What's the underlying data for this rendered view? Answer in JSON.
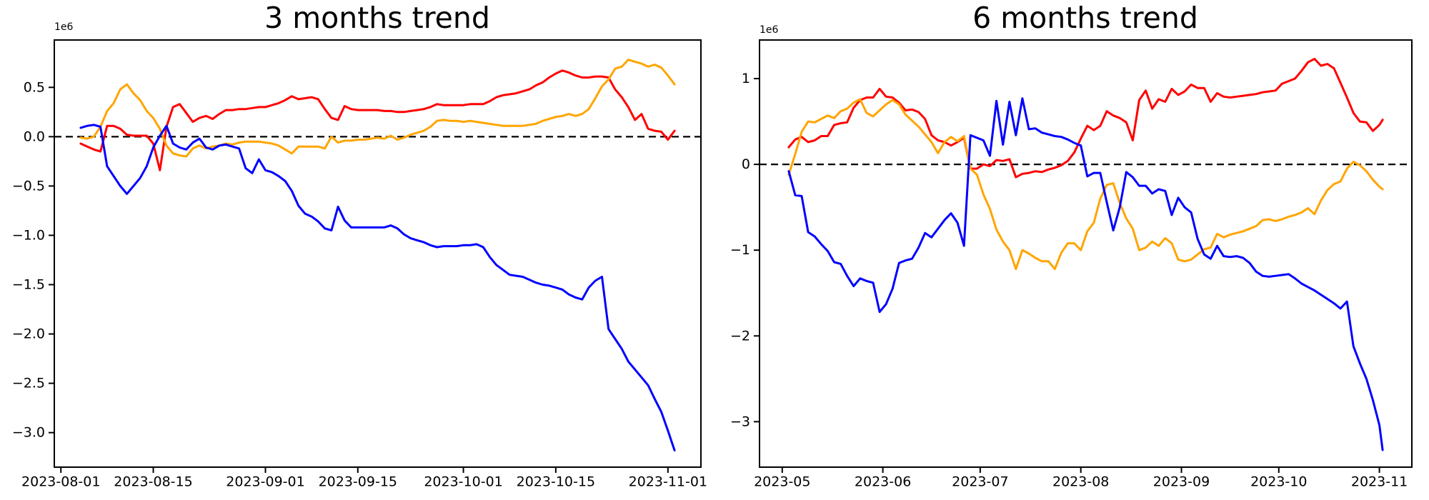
{
  "figure": {
    "background": "#ffffff",
    "text_color": "#000000"
  },
  "chart_data": [
    {
      "id": "three-months-trend",
      "type": "line",
      "title": "3 months trend",
      "y_offset_label": "1e6",
      "grid": false,
      "legend": "none",
      "zero_line": true,
      "xlim": [
        "2023-07-31",
        "2023-11-06"
      ],
      "ylim": [
        -3.35,
        0.98
      ],
      "yticks": [
        {
          "v": 0.5,
          "label": "0.5"
        },
        {
          "v": 0.0,
          "label": "0.0"
        },
        {
          "v": -0.5,
          "label": "−0.5"
        },
        {
          "v": -1.0,
          "label": "−1.0"
        },
        {
          "v": -1.5,
          "label": "−1.5"
        },
        {
          "v": -2.0,
          "label": "−2.0"
        },
        {
          "v": -2.5,
          "label": "−2.5"
        },
        {
          "v": -3.0,
          "label": "−3.0"
        }
      ],
      "xticks": [
        {
          "date": "2023-08-01",
          "label": "2023-08-01"
        },
        {
          "date": "2023-08-15",
          "label": "2023-08-15"
        },
        {
          "date": "2023-09-01",
          "label": "2023-09-01"
        },
        {
          "date": "2023-09-15",
          "label": "2023-09-15"
        },
        {
          "date": "2023-10-01",
          "label": "2023-10-01"
        },
        {
          "date": "2023-10-15",
          "label": "2023-10-15"
        },
        {
          "date": "2023-11-01",
          "label": "2023-11-01"
        }
      ],
      "x": [
        "2023-08-04",
        "2023-08-05",
        "2023-08-06",
        "2023-08-07",
        "2023-08-08",
        "2023-08-09",
        "2023-08-10",
        "2023-08-11",
        "2023-08-12",
        "2023-08-13",
        "2023-08-14",
        "2023-08-15",
        "2023-08-16",
        "2023-08-17",
        "2023-08-18",
        "2023-08-19",
        "2023-08-20",
        "2023-08-21",
        "2023-08-22",
        "2023-08-23",
        "2023-08-24",
        "2023-08-25",
        "2023-08-26",
        "2023-08-27",
        "2023-08-28",
        "2023-08-29",
        "2023-08-30",
        "2023-08-31",
        "2023-09-01",
        "2023-09-02",
        "2023-09-03",
        "2023-09-04",
        "2023-09-05",
        "2023-09-06",
        "2023-09-07",
        "2023-09-08",
        "2023-09-09",
        "2023-09-10",
        "2023-09-11",
        "2023-09-12",
        "2023-09-13",
        "2023-09-14",
        "2023-09-15",
        "2023-09-16",
        "2023-09-17",
        "2023-09-18",
        "2023-09-19",
        "2023-09-20",
        "2023-09-21",
        "2023-09-22",
        "2023-09-23",
        "2023-09-24",
        "2023-09-25",
        "2023-09-26",
        "2023-09-27",
        "2023-09-28",
        "2023-09-29",
        "2023-09-30",
        "2023-10-01",
        "2023-10-02",
        "2023-10-03",
        "2023-10-04",
        "2023-10-05",
        "2023-10-06",
        "2023-10-07",
        "2023-10-08",
        "2023-10-09",
        "2023-10-10",
        "2023-10-11",
        "2023-10-12",
        "2023-10-13",
        "2023-10-14",
        "2023-10-15",
        "2023-10-16",
        "2023-10-17",
        "2023-10-18",
        "2023-10-19",
        "2023-10-20",
        "2023-10-21",
        "2023-10-22",
        "2023-10-23",
        "2023-10-24",
        "2023-10-25",
        "2023-10-26",
        "2023-10-27",
        "2023-10-28",
        "2023-10-29",
        "2023-10-30",
        "2023-10-31",
        "2023-11-01",
        "2023-11-02"
      ],
      "series": [
        {
          "name": "red",
          "color": "#ff0000",
          "values": [
            -0.07,
            -0.1,
            -0.13,
            -0.15,
            0.11,
            0.11,
            0.08,
            0.02,
            0.01,
            0.01,
            0.01,
            -0.07,
            -0.34,
            0.1,
            0.3,
            0.33,
            0.24,
            0.15,
            0.19,
            0.21,
            0.18,
            0.23,
            0.27,
            0.27,
            0.28,
            0.28,
            0.29,
            0.3,
            0.3,
            0.32,
            0.34,
            0.37,
            0.41,
            0.38,
            0.39,
            0.4,
            0.38,
            0.28,
            0.19,
            0.17,
            0.31,
            0.28,
            0.27,
            0.27,
            0.27,
            0.27,
            0.26,
            0.26,
            0.25,
            0.25,
            0.26,
            0.27,
            0.28,
            0.3,
            0.33,
            0.32,
            0.32,
            0.32,
            0.32,
            0.33,
            0.33,
            0.33,
            0.36,
            0.4,
            0.42,
            0.43,
            0.44,
            0.46,
            0.48,
            0.52,
            0.55,
            0.6,
            0.64,
            0.67,
            0.65,
            0.62,
            0.6,
            0.6,
            0.61,
            0.61,
            0.6,
            0.48,
            0.4,
            0.3,
            0.17,
            0.23,
            0.08,
            0.06,
            0.05,
            -0.03,
            0.06
          ]
        },
        {
          "name": "orange",
          "color": "#ffa500",
          "values": [
            -0.01,
            -0.02,
            0.0,
            0.1,
            0.26,
            0.34,
            0.48,
            0.53,
            0.44,
            0.37,
            0.26,
            0.19,
            0.08,
            -0.09,
            -0.17,
            -0.19,
            -0.2,
            -0.12,
            -0.09,
            -0.12,
            -0.1,
            -0.09,
            -0.07,
            -0.08,
            -0.06,
            -0.05,
            -0.05,
            -0.05,
            -0.06,
            -0.07,
            -0.09,
            -0.13,
            -0.17,
            -0.1,
            -0.1,
            -0.1,
            -0.1,
            -0.12,
            0.0,
            -0.06,
            -0.04,
            -0.04,
            -0.03,
            -0.03,
            -0.02,
            -0.01,
            -0.02,
            0.01,
            -0.03,
            -0.01,
            0.02,
            0.04,
            0.06,
            0.1,
            0.16,
            0.17,
            0.16,
            0.16,
            0.15,
            0.16,
            0.15,
            0.14,
            0.13,
            0.12,
            0.11,
            0.11,
            0.11,
            0.11,
            0.12,
            0.13,
            0.16,
            0.18,
            0.2,
            0.21,
            0.23,
            0.21,
            0.23,
            0.28,
            0.39,
            0.51,
            0.58,
            0.69,
            0.71,
            0.78,
            0.76,
            0.74,
            0.71,
            0.73,
            0.7,
            0.62,
            0.53
          ]
        },
        {
          "name": "blue",
          "color": "#0000ff",
          "values": [
            0.09,
            0.11,
            0.12,
            0.1,
            -0.3,
            -0.4,
            -0.5,
            -0.58,
            -0.5,
            -0.42,
            -0.3,
            -0.11,
            0.01,
            0.11,
            -0.07,
            -0.11,
            -0.13,
            -0.06,
            -0.02,
            -0.11,
            -0.13,
            -0.09,
            -0.08,
            -0.1,
            -0.12,
            -0.32,
            -0.37,
            -0.23,
            -0.34,
            -0.36,
            -0.4,
            -0.45,
            -0.55,
            -0.7,
            -0.78,
            -0.81,
            -0.86,
            -0.93,
            -0.95,
            -0.71,
            -0.85,
            -0.92,
            -0.92,
            -0.92,
            -0.92,
            -0.92,
            -0.92,
            -0.9,
            -0.93,
            -0.99,
            -1.03,
            -1.05,
            -1.07,
            -1.1,
            -1.12,
            -1.11,
            -1.11,
            -1.11,
            -1.1,
            -1.1,
            -1.09,
            -1.12,
            -1.22,
            -1.3,
            -1.35,
            -1.4,
            -1.41,
            -1.42,
            -1.45,
            -1.48,
            -1.5,
            -1.51,
            -1.53,
            -1.55,
            -1.6,
            -1.63,
            -1.65,
            -1.53,
            -1.46,
            -1.42,
            -1.95,
            -2.05,
            -2.15,
            -2.28,
            -2.36,
            -2.44,
            -2.52,
            -2.66,
            -2.79,
            -2.98,
            -3.18
          ]
        }
      ]
    },
    {
      "id": "six-months-trend",
      "type": "line",
      "title": "6 months trend",
      "y_offset_label": "1e6",
      "grid": false,
      "legend": "none",
      "zero_line": true,
      "xlim": [
        "2023-04-24",
        "2023-11-11"
      ],
      "ylim": [
        -3.53,
        1.45
      ],
      "yticks": [
        {
          "v": 1,
          "label": "1"
        },
        {
          "v": 0,
          "label": "0"
        },
        {
          "v": -1,
          "label": "−1"
        },
        {
          "v": -2,
          "label": "−2"
        },
        {
          "v": -3,
          "label": "−3"
        }
      ],
      "xticks": [
        {
          "date": "2023-05-01",
          "label": "2023-05"
        },
        {
          "date": "2023-06-01",
          "label": "2023-06"
        },
        {
          "date": "2023-07-01",
          "label": "2023-07"
        },
        {
          "date": "2023-08-01",
          "label": "2023-08"
        },
        {
          "date": "2023-09-01",
          "label": "2023-09"
        },
        {
          "date": "2023-10-01",
          "label": "2023-10"
        },
        {
          "date": "2023-11-01",
          "label": "2023-11"
        }
      ],
      "x": [
        "2023-05-03",
        "2023-05-05",
        "2023-05-07",
        "2023-05-09",
        "2023-05-11",
        "2023-05-13",
        "2023-05-15",
        "2023-05-17",
        "2023-05-19",
        "2023-05-21",
        "2023-05-23",
        "2023-05-25",
        "2023-05-27",
        "2023-05-29",
        "2023-05-31",
        "2023-06-02",
        "2023-06-04",
        "2023-06-06",
        "2023-06-08",
        "2023-06-10",
        "2023-06-12",
        "2023-06-14",
        "2023-06-16",
        "2023-06-18",
        "2023-06-20",
        "2023-06-22",
        "2023-06-24",
        "2023-06-26",
        "2023-06-28",
        "2023-06-30",
        "2023-07-02",
        "2023-07-04",
        "2023-07-06",
        "2023-07-08",
        "2023-07-10",
        "2023-07-12",
        "2023-07-14",
        "2023-07-16",
        "2023-07-18",
        "2023-07-20",
        "2023-07-22",
        "2023-07-24",
        "2023-07-26",
        "2023-07-28",
        "2023-07-30",
        "2023-08-01",
        "2023-08-03",
        "2023-08-05",
        "2023-08-07",
        "2023-08-09",
        "2023-08-11",
        "2023-08-13",
        "2023-08-15",
        "2023-08-17",
        "2023-08-19",
        "2023-08-21",
        "2023-08-23",
        "2023-08-25",
        "2023-08-27",
        "2023-08-29",
        "2023-08-31",
        "2023-09-02",
        "2023-09-04",
        "2023-09-06",
        "2023-09-08",
        "2023-09-10",
        "2023-09-12",
        "2023-09-14",
        "2023-09-16",
        "2023-09-18",
        "2023-09-20",
        "2023-09-22",
        "2023-09-24",
        "2023-09-26",
        "2023-09-28",
        "2023-09-30",
        "2023-10-02",
        "2023-10-04",
        "2023-10-06",
        "2023-10-08",
        "2023-10-10",
        "2023-10-12",
        "2023-10-14",
        "2023-10-16",
        "2023-10-18",
        "2023-10-20",
        "2023-10-22",
        "2023-10-24",
        "2023-10-26",
        "2023-10-28",
        "2023-10-30",
        "2023-11-01",
        "2023-11-02"
      ],
      "series": [
        {
          "name": "red",
          "color": "#ff0000",
          "values": [
            0.2,
            0.29,
            0.32,
            0.26,
            0.28,
            0.33,
            0.33,
            0.46,
            0.48,
            0.49,
            0.66,
            0.75,
            0.78,
            0.78,
            0.88,
            0.79,
            0.78,
            0.72,
            0.63,
            0.64,
            0.61,
            0.53,
            0.34,
            0.28,
            0.26,
            0.22,
            0.26,
            0.31,
            -0.05,
            -0.05,
            0.0,
            -0.02,
            0.05,
            0.04,
            0.06,
            -0.15,
            -0.11,
            -0.1,
            -0.08,
            -0.09,
            -0.06,
            -0.04,
            -0.01,
            0.04,
            0.14,
            0.3,
            0.45,
            0.4,
            0.45,
            0.62,
            0.57,
            0.54,
            0.49,
            0.28,
            0.75,
            0.86,
            0.65,
            0.76,
            0.73,
            0.88,
            0.81,
            0.85,
            0.93,
            0.89,
            0.89,
            0.73,
            0.83,
            0.79,
            0.78,
            0.79,
            0.8,
            0.81,
            0.82,
            0.84,
            0.85,
            0.86,
            0.94,
            0.97,
            1.0,
            1.09,
            1.19,
            1.23,
            1.15,
            1.17,
            1.12,
            0.95,
            0.78,
            0.6,
            0.5,
            0.49,
            0.39,
            0.46,
            0.52
          ]
        },
        {
          "name": "orange",
          "color": "#ffa500",
          "values": [
            -0.12,
            0.12,
            0.38,
            0.5,
            0.49,
            0.53,
            0.57,
            0.54,
            0.62,
            0.65,
            0.72,
            0.76,
            0.6,
            0.56,
            0.63,
            0.7,
            0.75,
            0.7,
            0.58,
            0.51,
            0.44,
            0.35,
            0.26,
            0.13,
            0.26,
            0.32,
            0.27,
            0.33,
            -0.05,
            -0.12,
            -0.35,
            -0.52,
            -0.76,
            -0.9,
            -1.0,
            -1.22,
            -1.0,
            -1.04,
            -1.09,
            -1.13,
            -1.13,
            -1.22,
            -1.03,
            -0.92,
            -0.92,
            -1.0,
            -0.78,
            -0.68,
            -0.4,
            -0.24,
            -0.22,
            -0.45,
            -0.63,
            -0.75,
            -1.0,
            -0.97,
            -0.9,
            -0.95,
            -0.86,
            -0.92,
            -1.11,
            -1.13,
            -1.11,
            -1.05,
            -0.99,
            -0.97,
            -0.81,
            -0.85,
            -0.82,
            -0.8,
            -0.78,
            -0.75,
            -0.72,
            -0.65,
            -0.64,
            -0.66,
            -0.64,
            -0.61,
            -0.59,
            -0.56,
            -0.51,
            -0.58,
            -0.42,
            -0.3,
            -0.23,
            -0.2,
            -0.05,
            0.03,
            -0.01,
            -0.08,
            -0.18,
            -0.26,
            -0.29
          ]
        },
        {
          "name": "blue",
          "color": "#0000ff",
          "values": [
            -0.08,
            -0.36,
            -0.37,
            -0.79,
            -0.84,
            -0.93,
            -1.01,
            -1.14,
            -1.16,
            -1.3,
            -1.42,
            -1.33,
            -1.36,
            -1.38,
            -1.72,
            -1.63,
            -1.45,
            -1.15,
            -1.12,
            -1.1,
            -0.97,
            -0.8,
            -0.85,
            -0.75,
            -0.65,
            -0.57,
            -0.68,
            -0.95,
            0.34,
            0.31,
            0.28,
            0.1,
            0.74,
            0.23,
            0.73,
            0.34,
            0.77,
            0.41,
            0.42,
            0.37,
            0.35,
            0.33,
            0.32,
            0.29,
            0.25,
            0.22,
            -0.14,
            -0.1,
            -0.1,
            -0.44,
            -0.77,
            -0.5,
            -0.09,
            -0.15,
            -0.25,
            -0.25,
            -0.34,
            -0.29,
            -0.31,
            -0.59,
            -0.39,
            -0.5,
            -0.56,
            -0.87,
            -1.05,
            -1.1,
            -0.95,
            -1.07,
            -1.08,
            -1.07,
            -1.09,
            -1.15,
            -1.25,
            -1.3,
            -1.31,
            -1.3,
            -1.29,
            -1.28,
            -1.33,
            -1.39,
            -1.43,
            -1.47,
            -1.52,
            -1.57,
            -1.62,
            -1.68,
            -1.6,
            -2.12,
            -2.32,
            -2.5,
            -2.75,
            -3.04,
            -3.33
          ]
        }
      ]
    }
  ]
}
